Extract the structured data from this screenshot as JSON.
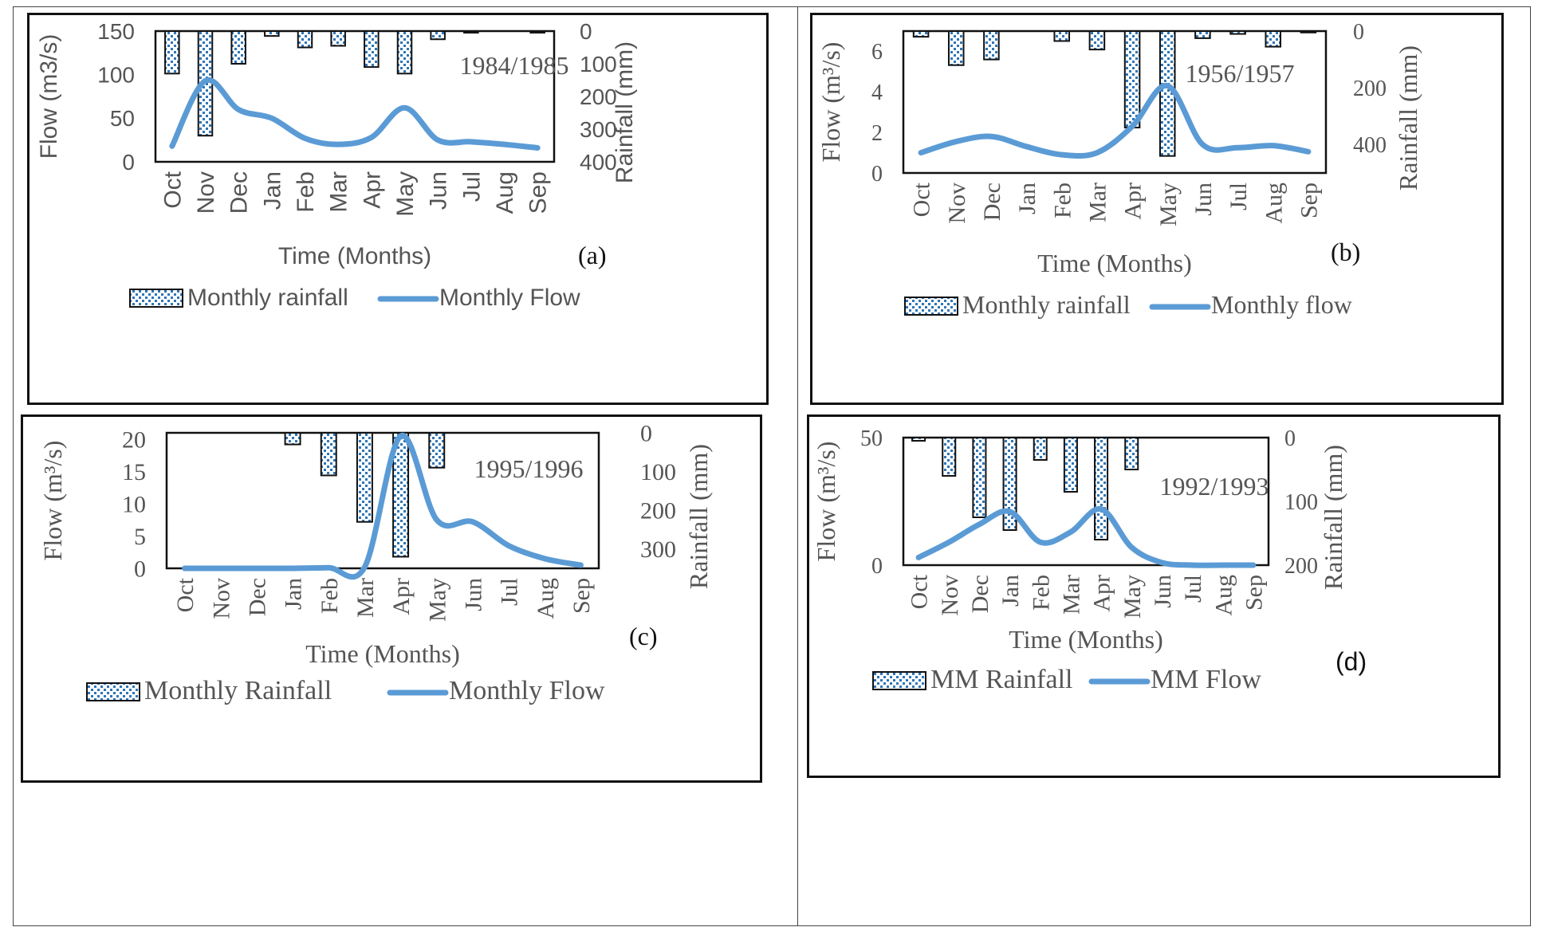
{
  "chart_data": [
    {
      "type": "bar+line",
      "panel_label": "(a)",
      "period_label": "1984/1985",
      "categories": [
        "Oct",
        "Nov",
        "Dec",
        "Jan",
        "Feb",
        "Mar",
        "Apr",
        "May",
        "Jun",
        "Jul",
        "Aug",
        "Sep"
      ],
      "xlabel": "Time (Months)",
      "ylabel_left": "Flow (m3/s)",
      "ylabel_right": "Rainfall (mm)",
      "left_ylim": [
        0,
        150
      ],
      "left_ticks": [
        0,
        50,
        100,
        150
      ],
      "right_ylim": [
        0,
        400
      ],
      "right_ticks": [
        0,
        100,
        200,
        300,
        400
      ],
      "right_axis_inverted": true,
      "legend_placement": "bottom",
      "series": [
        {
          "name": "Monthly rainfall",
          "kind": "bar",
          "axis": "right",
          "values": [
            130,
            320,
            100,
            15,
            50,
            45,
            110,
            130,
            25,
            5,
            0,
            5
          ]
        },
        {
          "name": "Monthly Flow",
          "kind": "line",
          "axis": "left",
          "values": [
            18,
            93,
            60,
            50,
            27,
            20,
            28,
            62,
            25,
            23,
            20,
            16
          ]
        }
      ],
      "colors": {
        "line": "#5b9bd5",
        "bar_pattern": "#2e75b6"
      }
    },
    {
      "type": "bar+line",
      "panel_label": "(b)",
      "period_label": "1956/1957",
      "categories": [
        "Oct",
        "Nov",
        "Dec",
        "Jan",
        "Feb",
        "Mar",
        "Apr",
        "May",
        "Jun",
        "Jul",
        "Aug",
        "Sep"
      ],
      "xlabel": "Time (Months)",
      "ylabel_left": "Flow (m³/s)",
      "ylabel_right": "Rainfall (mm)",
      "left_ylim": [
        0,
        7
      ],
      "left_ticks": [
        0,
        2,
        4,
        6
      ],
      "right_ylim": [
        0,
        500
      ],
      "right_ticks": [
        0,
        200,
        400
      ],
      "right_axis_inverted": true,
      "legend_placement": "bottom",
      "series": [
        {
          "name": "Monthly rainfall",
          "kind": "bar",
          "axis": "right",
          "values": [
            20,
            120,
            100,
            0,
            35,
            65,
            340,
            440,
            25,
            10,
            55,
            5
          ]
        },
        {
          "name": "Monthly flow",
          "kind": "line",
          "axis": "left",
          "values": [
            1.0,
            1.55,
            1.8,
            1.3,
            0.9,
            1.0,
            2.3,
            4.3,
            1.4,
            1.25,
            1.35,
            1.05
          ]
        }
      ],
      "colors": {
        "line": "#5b9bd5",
        "bar_pattern": "#2e75b6"
      }
    },
    {
      "type": "bar+line",
      "panel_label": "(c)",
      "period_label": "1995/1996",
      "categories": [
        "Oct",
        "Nov",
        "Dec",
        "Jan",
        "Feb",
        "Mar",
        "Apr",
        "May",
        "Jun",
        "Jul",
        "Aug",
        "Sep"
      ],
      "xlabel": "Time (Months)",
      "ylabel_left": "Flow (m³/s)",
      "ylabel_right": "Rainfall (mm)",
      "left_ylim": [
        0,
        21
      ],
      "left_ticks": [
        0,
        5,
        10,
        15,
        20
      ],
      "right_ylim": [
        0,
        350
      ],
      "right_ticks": [
        0,
        100,
        200,
        300
      ],
      "right_axis_inverted": true,
      "legend_placement": "bottom",
      "series": [
        {
          "name": "Monthly Rainfall",
          "kind": "bar",
          "axis": "right",
          "values": [
            0,
            0,
            0,
            30,
            110,
            230,
            320,
            90,
            0,
            0,
            0,
            0
          ]
        },
        {
          "name": "Monthly Flow",
          "kind": "line",
          "axis": "left",
          "values": [
            0,
            0,
            0,
            0,
            0.1,
            0.2,
            20.5,
            7.5,
            7.2,
            3.5,
            1.5,
            0.5
          ]
        }
      ],
      "colors": {
        "line": "#5b9bd5",
        "bar_pattern": "#2e75b6"
      }
    },
    {
      "type": "bar+line",
      "panel_label": "(d)",
      "period_label": "1992/1993",
      "categories": [
        "Oct",
        "Nov",
        "Dec",
        "Jan",
        "Feb",
        "Mar",
        "Apr",
        "May",
        "Jun",
        "Jul",
        "Aug",
        "Sep"
      ],
      "xlabel": "Time (Months)",
      "ylabel_left": "Flow (m³/s)",
      "ylabel_right": "Rainfall (mm)",
      "left_ylim": [
        0,
        50
      ],
      "left_ticks": [
        0,
        50
      ],
      "right_ylim": [
        0,
        200
      ],
      "right_ticks": [
        0,
        100,
        200
      ],
      "right_axis_inverted": true,
      "legend_placement": "bottom",
      "series": [
        {
          "name": "MM Rainfall",
          "kind": "bar",
          "axis": "right",
          "values": [
            5,
            60,
            125,
            145,
            35,
            85,
            160,
            50,
            0,
            0,
            0,
            0
          ]
        },
        {
          "name": "MM Flow",
          "kind": "line",
          "axis": "left",
          "values": [
            3,
            9,
            16,
            21,
            9,
            13,
            22,
            7,
            1,
            0,
            0,
            0
          ]
        }
      ],
      "colors": {
        "line": "#5b9bd5",
        "bar_pattern": "#2e75b6"
      }
    }
  ]
}
